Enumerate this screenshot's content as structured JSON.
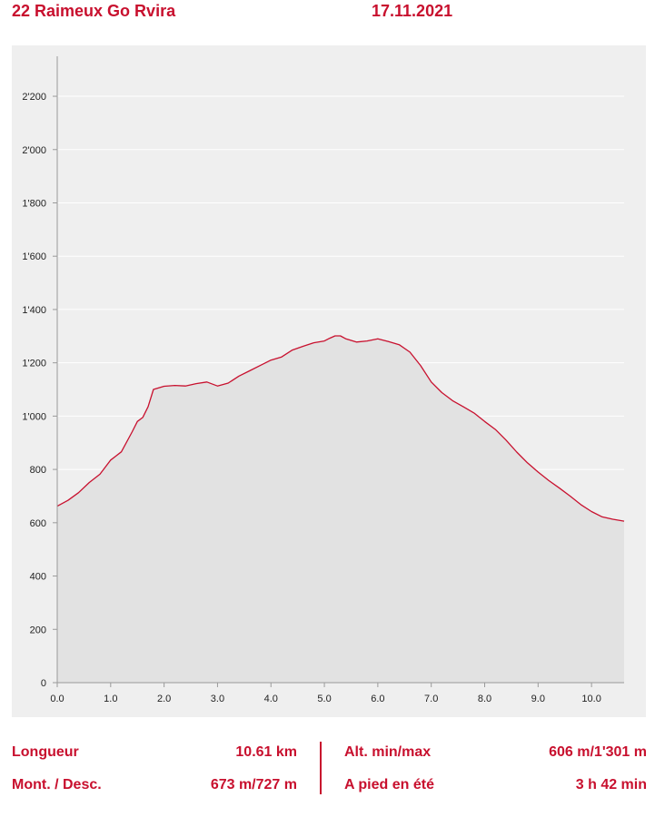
{
  "header": {
    "title": "22 Raimeux Go Rvira",
    "date": "17.11.2021"
  },
  "colors": {
    "accent": "#c8102e",
    "plot_bg": "#efefef",
    "area_fill": "#e2e2e2",
    "line": "#c8102e"
  },
  "chart_data": {
    "type": "area",
    "title": "",
    "xlabel": "",
    "ylabel": "",
    "xlim": [
      0,
      10.61
    ],
    "ylim": [
      0,
      2350
    ],
    "x_ticks": [
      0,
      1,
      2,
      3,
      4,
      5,
      6,
      7,
      8,
      9,
      10
    ],
    "x_tick_labels": [
      "0.0",
      "1.0",
      "2.0",
      "3.0",
      "4.0",
      "5.0",
      "6.0",
      "7.0",
      "8.0",
      "9.0",
      "10.0"
    ],
    "y_ticks": [
      0,
      200,
      400,
      600,
      800,
      1000,
      1200,
      1400,
      1600,
      1800,
      2000,
      2200
    ],
    "y_tick_labels": [
      "0",
      "200",
      "400",
      "600",
      "800",
      "1'000",
      "1'200",
      "1'400",
      "1'600",
      "1'800",
      "2'000",
      "2'200"
    ],
    "grid": true,
    "x": [
      0,
      0.2,
      0.4,
      0.6,
      0.8,
      1.0,
      1.2,
      1.4,
      1.5,
      1.6,
      1.7,
      1.8,
      2.0,
      2.2,
      2.4,
      2.6,
      2.8,
      3.0,
      3.2,
      3.4,
      3.6,
      3.8,
      4.0,
      4.2,
      4.4,
      4.6,
      4.8,
      5.0,
      5.1,
      5.2,
      5.3,
      5.4,
      5.6,
      5.8,
      6.0,
      6.2,
      6.4,
      6.6,
      6.8,
      7.0,
      7.2,
      7.4,
      7.6,
      7.8,
      8.0,
      8.2,
      8.4,
      8.6,
      8.8,
      9.0,
      9.2,
      9.4,
      9.6,
      9.8,
      10.0,
      10.2,
      10.4,
      10.61
    ],
    "y": [
      662,
      684,
      713,
      751,
      782,
      835,
      866,
      940,
      980,
      995,
      1035,
      1100,
      1112,
      1115,
      1113,
      1122,
      1128,
      1113,
      1124,
      1150,
      1170,
      1190,
      1210,
      1222,
      1248,
      1262,
      1275,
      1282,
      1292,
      1301,
      1301,
      1290,
      1278,
      1282,
      1290,
      1280,
      1268,
      1240,
      1190,
      1128,
      1088,
      1058,
      1035,
      1012,
      980,
      950,
      910,
      865,
      825,
      790,
      758,
      730,
      700,
      668,
      642,
      622,
      613,
      606
    ]
  },
  "stats": {
    "left": [
      {
        "label": "Longueur",
        "value": "10.61 km"
      },
      {
        "label": "Mont. / Desc.",
        "value": "673 m/727 m"
      }
    ],
    "right": [
      {
        "label": "Alt. min/max",
        "value": "606 m/1'301 m"
      },
      {
        "label": "A pied en été",
        "value": "3 h 42 min"
      }
    ]
  }
}
